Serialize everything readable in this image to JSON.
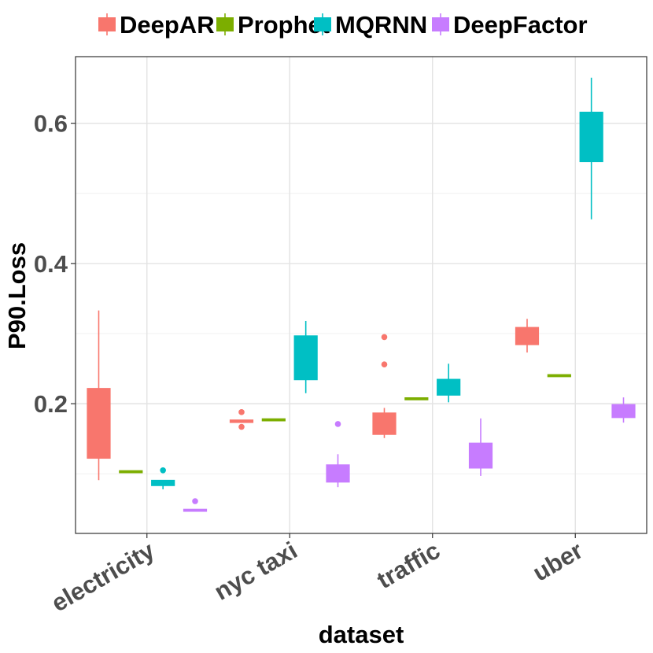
{
  "chart_data": {
    "type": "boxplot",
    "title": "",
    "xlabel": "dataset",
    "ylabel": "P90.Loss",
    "ylim": [
      0.015,
      0.695
    ],
    "y_ticks": [
      0.2,
      0.4,
      0.6
    ],
    "y_tick_labels": [
      "0.2",
      "0.4",
      "0.6"
    ],
    "y_minor_ticks": [
      0.1,
      0.3,
      0.5
    ],
    "categories": [
      "electricity",
      "nyc taxi",
      "traffic",
      "uber"
    ],
    "legend": {
      "position": "top"
    },
    "series": [
      {
        "name": "DeepAR",
        "color": "#F8766D",
        "boxes": [
          {
            "min": 0.091,
            "q1": 0.122,
            "median": 0.16,
            "q3": 0.222,
            "max": 0.333,
            "outliers": []
          },
          {
            "min": 0.173,
            "q1": 0.173,
            "median": 0.175,
            "q3": 0.177,
            "max": 0.177,
            "outliers": [
              0.188,
              0.167
            ]
          },
          {
            "min": 0.151,
            "q1": 0.156,
            "median": 0.166,
            "q3": 0.187,
            "max": 0.194,
            "outliers": [
              0.295,
              0.256
            ]
          },
          {
            "min": 0.273,
            "q1": 0.284,
            "median": 0.296,
            "q3": 0.309,
            "max": 0.321,
            "outliers": []
          }
        ]
      },
      {
        "name": "Prophet",
        "color": "#7CAE00",
        "boxes": [
          {
            "min": 0.103,
            "q1": 0.103,
            "median": 0.103,
            "q3": 0.103,
            "max": 0.103,
            "outliers": []
          },
          {
            "min": 0.177,
            "q1": 0.177,
            "median": 0.177,
            "q3": 0.177,
            "max": 0.177,
            "outliers": []
          },
          {
            "min": 0.207,
            "q1": 0.207,
            "median": 0.207,
            "q3": 0.207,
            "max": 0.207,
            "outliers": []
          },
          {
            "min": 0.24,
            "q1": 0.24,
            "median": 0.24,
            "q3": 0.24,
            "max": 0.24,
            "outliers": []
          }
        ]
      },
      {
        "name": "MQRNN",
        "color": "#00BFC4",
        "boxes": [
          {
            "min": 0.078,
            "q1": 0.083,
            "median": 0.086,
            "q3": 0.091,
            "max": 0.091,
            "outliers": [
              0.105
            ]
          },
          {
            "min": 0.215,
            "q1": 0.234,
            "median": 0.262,
            "q3": 0.297,
            "max": 0.318,
            "outliers": []
          },
          {
            "min": 0.202,
            "q1": 0.212,
            "median": 0.222,
            "q3": 0.235,
            "max": 0.257,
            "outliers": []
          },
          {
            "min": 0.463,
            "q1": 0.545,
            "median": 0.575,
            "q3": 0.616,
            "max": 0.665,
            "outliers": []
          }
        ]
      },
      {
        "name": "DeepFactor",
        "color": "#C77CFF",
        "boxes": [
          {
            "min": 0.047,
            "q1": 0.047,
            "median": 0.048,
            "q3": 0.049,
            "max": 0.049,
            "outliers": [
              0.061
            ]
          },
          {
            "min": 0.081,
            "q1": 0.088,
            "median": 0.095,
            "q3": 0.113,
            "max": 0.128,
            "outliers": [
              0.171
            ]
          },
          {
            "min": 0.097,
            "q1": 0.108,
            "median": 0.12,
            "q3": 0.144,
            "max": 0.179,
            "outliers": []
          },
          {
            "min": 0.173,
            "q1": 0.18,
            "median": 0.188,
            "q3": 0.199,
            "max": 0.209,
            "outliers": []
          }
        ]
      }
    ]
  }
}
